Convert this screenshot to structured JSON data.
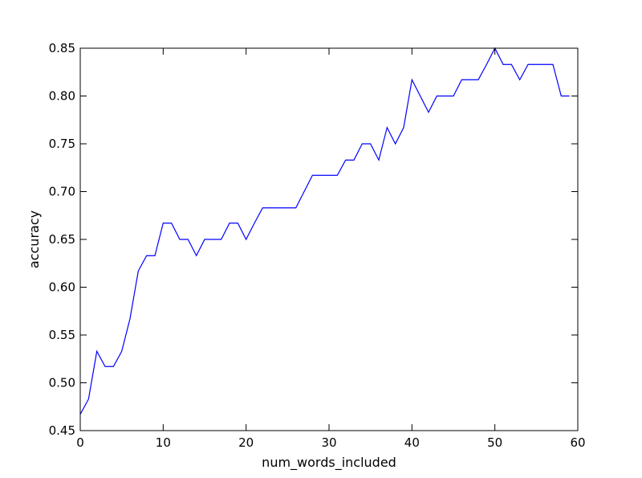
{
  "chart_data": {
    "type": "line",
    "title": "",
    "xlabel": "num_words_included",
    "ylabel": "accuracy",
    "xlim": [
      0,
      60
    ],
    "ylim": [
      0.45,
      0.85
    ],
    "x_ticks": [
      0,
      10,
      20,
      30,
      40,
      50,
      60
    ],
    "x_tick_labels": [
      "0",
      "10",
      "20",
      "30",
      "40",
      "50",
      "60"
    ],
    "y_ticks": [
      0.45,
      0.5,
      0.55,
      0.6,
      0.65,
      0.7,
      0.75,
      0.8,
      0.85
    ],
    "y_tick_labels": [
      "0.45",
      "0.50",
      "0.55",
      "0.60",
      "0.65",
      "0.70",
      "0.75",
      "0.80",
      "0.85"
    ],
    "grid": false,
    "legend": "none",
    "series": [
      {
        "color": "#0000ff",
        "x": [
          0,
          1,
          2,
          3,
          4,
          5,
          6,
          7,
          8,
          9,
          10,
          11,
          12,
          13,
          14,
          15,
          16,
          17,
          18,
          19,
          20,
          21,
          22,
          23,
          24,
          25,
          26,
          27,
          28,
          29,
          30,
          31,
          32,
          33,
          34,
          35,
          36,
          37,
          38,
          39,
          40,
          41,
          42,
          43,
          44,
          45,
          46,
          47,
          48,
          49,
          50,
          51,
          52,
          53,
          54,
          55,
          56,
          57,
          58,
          59
        ],
        "y": [
          0.467,
          0.483,
          0.533,
          0.517,
          0.517,
          0.533,
          0.567,
          0.617,
          0.633,
          0.633,
          0.667,
          0.667,
          0.65,
          0.65,
          0.633,
          0.65,
          0.65,
          0.65,
          0.667,
          0.667,
          0.65,
          0.667,
          0.683,
          0.683,
          0.683,
          0.683,
          0.683,
          0.7,
          0.717,
          0.717,
          0.717,
          0.717,
          0.733,
          0.733,
          0.75,
          0.75,
          0.733,
          0.767,
          0.75,
          0.767,
          0.817,
          0.8,
          0.783,
          0.8,
          0.8,
          0.8,
          0.817,
          0.817,
          0.817,
          0.833,
          0.85,
          0.833,
          0.833,
          0.817,
          0.833,
          0.833,
          0.833,
          0.833,
          0.8,
          0.8
        ]
      }
    ]
  }
}
